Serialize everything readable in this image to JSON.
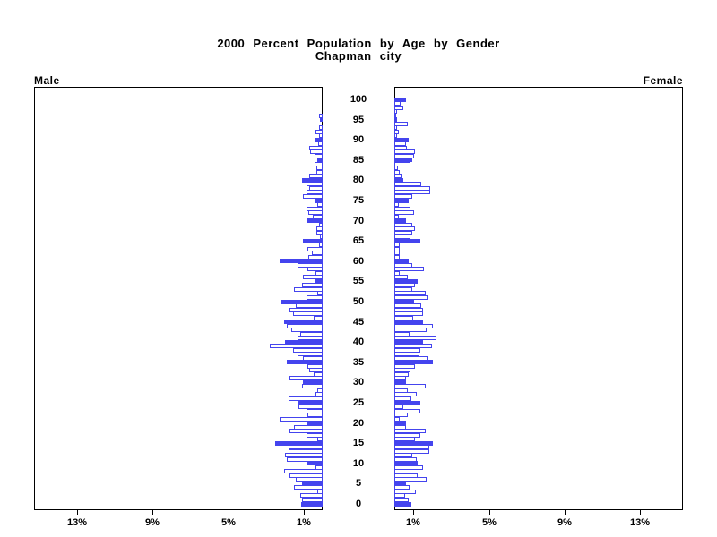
{
  "title": {
    "line1": "2000 Percent Population by Age by Gender",
    "line2": "Chapman city"
  },
  "panels": {
    "male_label": "Male",
    "female_label": "Female"
  },
  "axes": {
    "age_tick_labels": [
      "0",
      "5",
      "10",
      "15",
      "20",
      "25",
      "30",
      "35",
      "40",
      "45",
      "50",
      "55",
      "60",
      "65",
      "70",
      "75",
      "80",
      "85",
      "90",
      "95",
      "100"
    ],
    "male_pct_tick_labels": [
      "13%",
      "9%",
      "5%",
      "1%"
    ],
    "male_pct_tick_values": [
      13,
      9,
      5,
      1
    ],
    "female_pct_tick_labels": [
      "1%",
      "5%",
      "9%",
      "13%"
    ],
    "female_pct_tick_values": [
      1,
      5,
      9,
      13
    ]
  },
  "colors": {
    "bar_fill": "#4444ee",
    "bar_border": "#4444ee",
    "frame": "#000000",
    "text": "#000000"
  },
  "chart_data": {
    "type": "bar",
    "variant": "population-pyramid",
    "title": "2000 Percent Population by Age by Gender",
    "subtitle": "Chapman city",
    "x_unit": "percent of total population",
    "x_range_pct": [
      0,
      15.3
    ],
    "age_min": 0,
    "age_max": 100,
    "age_step": 1,
    "fill_rule": "bars at ages that are multiples of 5 are solid filled; other ages are white with blue outline",
    "series": [
      {
        "name": "Male",
        "values": [
          1.15,
          1.1,
          1.18,
          0.3,
          1.5,
          1.1,
          1.42,
          1.74,
          2.05,
          0.4,
          0.87,
          1.9,
          1.97,
          1.82,
          1.82,
          2.53,
          0.28,
          0.87,
          1.74,
          1.5,
          0.87,
          2.26,
          0.79,
          0.87,
          1.26,
          1.26,
          1.82,
          0.4,
          0.3,
          1.1,
          1.03,
          1.74,
          0.47,
          0.71,
          0.79,
          1.9,
          1.03,
          1.34,
          1.58,
          2.8,
          1.97,
          1.35,
          1.2,
          1.65,
          1.9,
          2.05,
          0.47,
          1.58,
          1.74,
          1.42,
          2.21,
          0.87,
          0.3,
          1.5,
          1.1,
          0.4,
          1.03,
          0.4,
          0.79,
          1.34,
          2.29,
          0.76,
          0.55,
          0.79,
          0.19,
          1.03,
          0.13,
          0.35,
          0.35,
          0.2,
          0.82,
          0.5,
          0.76,
          0.87,
          0.3,
          0.44,
          1.03,
          0.87,
          0.7,
          0.85,
          1.1,
          0.7,
          0.35,
          0.35,
          0.45,
          0.3,
          0.45,
          0.65,
          0.7,
          0.25,
          0.45,
          0.2,
          0.4,
          0.2,
          0,
          0.15,
          0.2,
          0,
          0,
          0,
          0
        ]
      },
      {
        "name": "Female",
        "values": [
          0.92,
          0.76,
          0.55,
          1.14,
          0.79,
          0.63,
          1.7,
          1.23,
          0.87,
          1.5,
          1.23,
          1.18,
          0.95,
          1.86,
          1.86,
          2.05,
          1.07,
          1.39,
          1.66,
          0.63,
          0.63,
          0.3,
          0.71,
          1.39,
          0.47,
          1.39,
          0.92,
          1.18,
          0.71,
          1.66,
          0.6,
          0.6,
          0.76,
          0.87,
          1.07,
          2.02,
          1.77,
          1.34,
          1.39,
          1.97,
          1.5,
          2.21,
          0.79,
          1.7,
          2.05,
          1.5,
          1.0,
          1.5,
          1.5,
          1.42,
          1.06,
          1.74,
          1.66,
          0.95,
          1.07,
          1.23,
          0.71,
          0.3,
          1.55,
          0.95,
          0.76,
          0.28,
          0.28,
          0.28,
          0.28,
          1.39,
          0.87,
          0.95,
          1.07,
          0.95,
          0.6,
          0.24,
          1.03,
          0.87,
          0.24,
          0.76,
          0.95,
          1.9,
          1.9,
          1.42,
          0.47,
          0.4,
          0.3,
          0.19,
          0.87,
          0.95,
          1.03,
          1.1,
          0.66,
          0.63,
          0.76,
          0.13,
          0.24,
          0.16,
          0.71,
          0.16,
          0.08,
          0.13,
          0.47,
          0.35,
          0.63
        ]
      }
    ],
    "legend": "none",
    "grid": false
  }
}
